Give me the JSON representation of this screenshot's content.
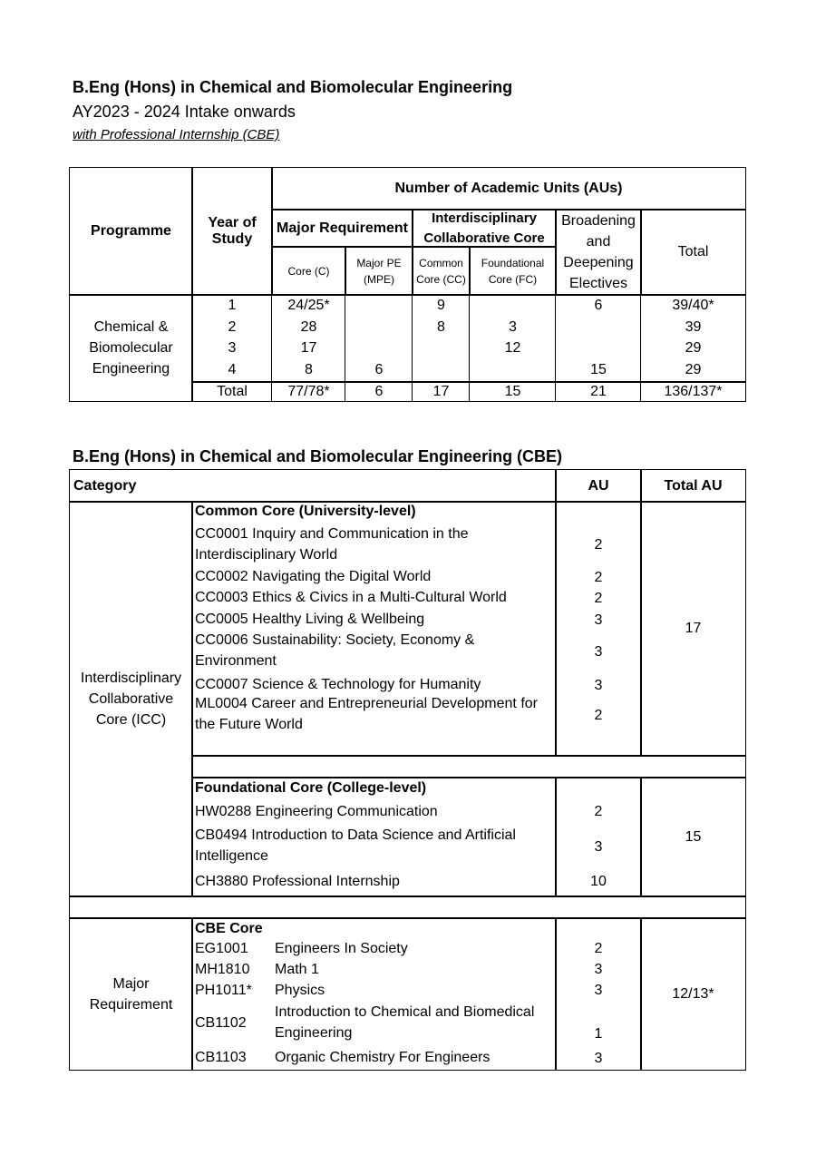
{
  "header": {
    "title": "B.Eng (Hons) in Chemical and Biomolecular Engineering",
    "intake": "AY2023 - 2024 Intake onwards",
    "variant": "with Professional Internship (CBE)"
  },
  "summary": {
    "h_programme": "Programme",
    "h_year": "Year of Study",
    "h_aus": "Number of Academic Units (AUs)",
    "h_major": "Major Requirement",
    "h_icc": "Interdisciplinary Collaborative Core",
    "h_bde": "Broadening and Deepening Electives",
    "h_total": "Total",
    "h_core": "Core (C)",
    "h_mpe": "Major PE (MPE)",
    "h_cc": "Common Core (CC)",
    "h_fc": "Foundational Core (FC)",
    "programme": "Chemical & Biomolecular Engineering",
    "rows": [
      {
        "year": "1",
        "core": "24/25*",
        "mpe": "",
        "cc": "9",
        "fc": "",
        "bde": "6",
        "total": "39/40*"
      },
      {
        "year": "2",
        "core": "28",
        "mpe": "",
        "cc": "8",
        "fc": "3",
        "bde": "",
        "total": "39"
      },
      {
        "year": "3",
        "core": "17",
        "mpe": "",
        "cc": "",
        "fc": "12",
        "bde": "",
        "total": "29"
      },
      {
        "year": "4",
        "core": "8",
        "mpe": "6",
        "cc": "",
        "fc": "",
        "bde": "15",
        "total": "29"
      }
    ],
    "totals": {
      "label": "Total",
      "core": "77/78*",
      "mpe": "6",
      "cc": "17",
      "fc": "15",
      "bde": "21",
      "total": "136/137*"
    }
  },
  "curriculum": {
    "title": "B.Eng (Hons) in Chemical and Biomolecular Engineering (CBE)",
    "h_category": "Category",
    "h_au": "AU",
    "h_total": "Total AU",
    "icc": {
      "category": "Interdisciplinary Collaborative Core (ICC)",
      "common": {
        "heading": "Common Core (University-level)",
        "total": "17",
        "items": [
          {
            "text": "CC0001 Inquiry and Communication in the Interdisciplinary World",
            "au": "2"
          },
          {
            "text": "CC0002 Navigating the Digital World",
            "au": "2"
          },
          {
            "text": "CC0003 Ethics & Civics in a Multi-Cultural World",
            "au": "2"
          },
          {
            "text": "CC0005 Healthy Living & Wellbeing",
            "au": "3"
          },
          {
            "text": "CC0006 Sustainability: Society, Economy & Environment",
            "au": "3"
          },
          {
            "text": "CC0007 Science & Technology for Humanity",
            "au": "3"
          },
          {
            "text": "ML0004 Career and Entrepreneurial Development for the Future World",
            "au": "2"
          }
        ]
      },
      "foundational": {
        "heading": "Foundational Core (College-level)",
        "total": "15",
        "items": [
          {
            "text": "HW0288 Engineering Communication",
            "au": "2"
          },
          {
            "text": "CB0494 Introduction to Data Science and Artificial Intelligence",
            "au": "3"
          },
          {
            "text": "CH3880 Professional Internship",
            "au": "10"
          }
        ]
      }
    },
    "major": {
      "category": "Major Requirement",
      "heading": "CBE Core",
      "total": "12/13*",
      "items": [
        {
          "code": "EG1001",
          "name": "Engineers In Society",
          "au": "2"
        },
        {
          "code": "MH1810",
          "name": "Math 1",
          "au": "3"
        },
        {
          "code": "PH1011*",
          "name": "Physics",
          "au": "3"
        },
        {
          "code": "CB1102",
          "name": "Introduction to Chemical and Biomedical Engineering",
          "au": "1"
        },
        {
          "code": "CB1103",
          "name": "Organic Chemistry For Engineers",
          "au": "3"
        }
      ]
    }
  }
}
